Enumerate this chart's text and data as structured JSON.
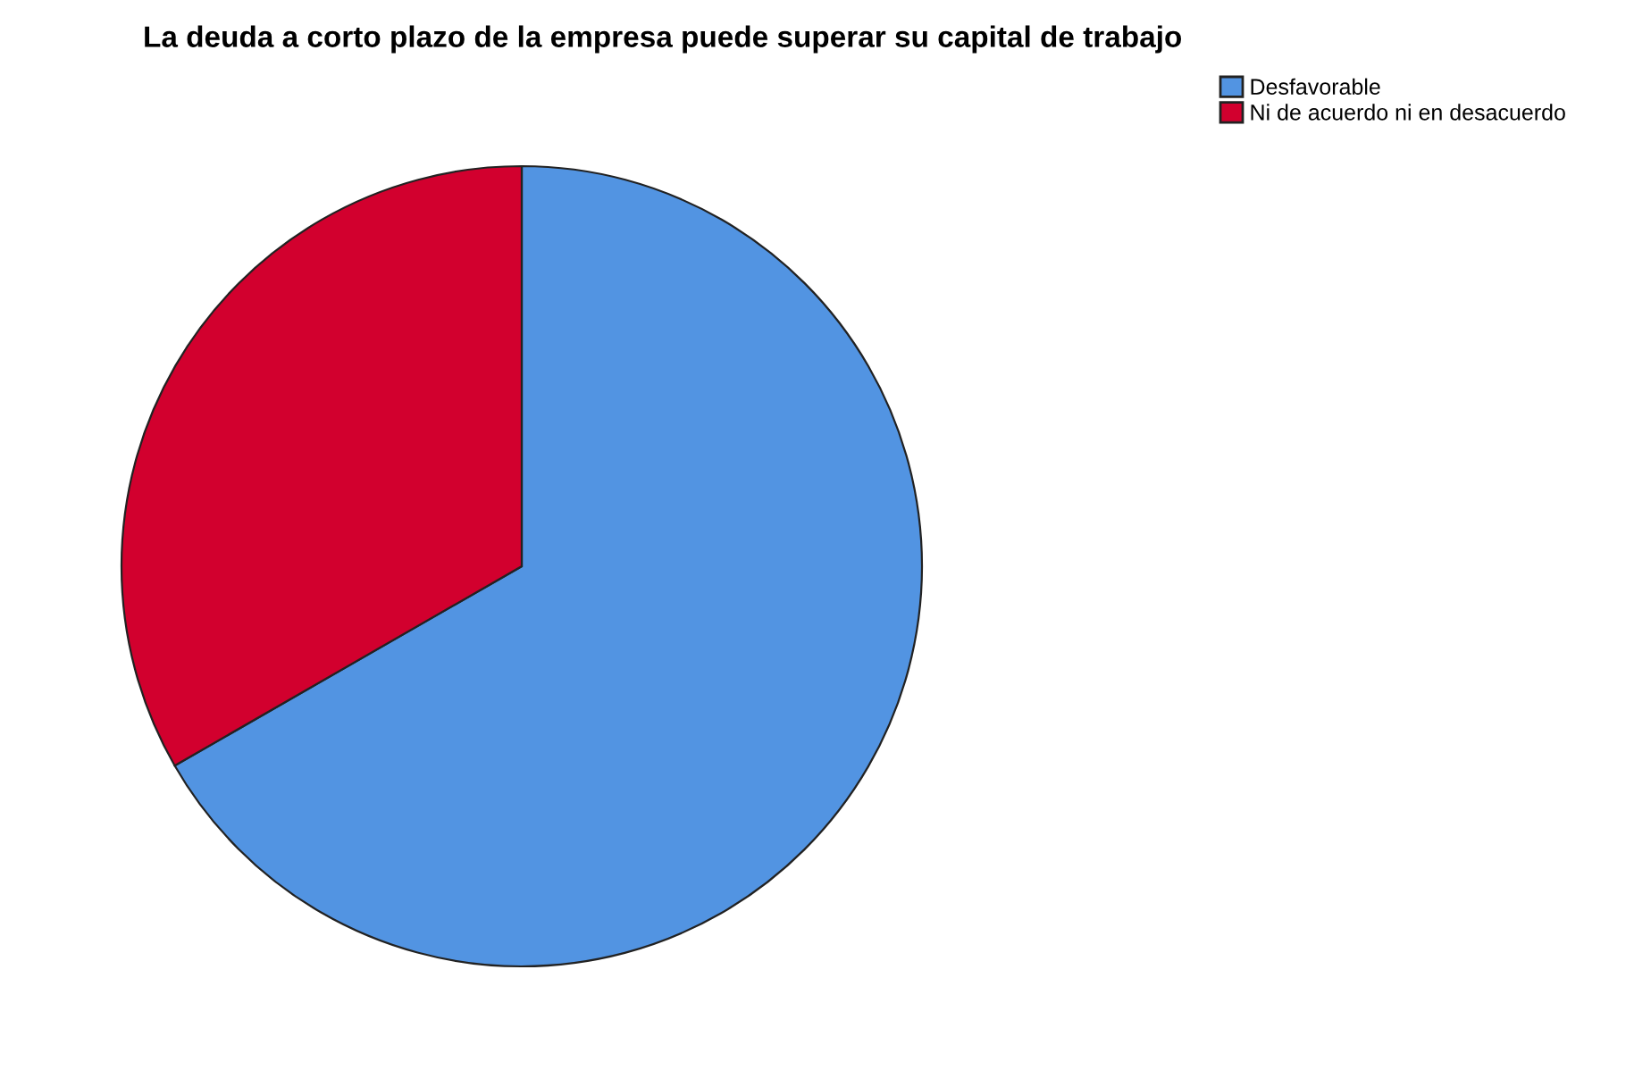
{
  "chart_data": {
    "type": "pie",
    "title": "La deuda a corto plazo de la empresa puede superar su capital de trabajo",
    "categories": [
      "Desfavorable",
      "Ni de acuerdo ni en desacuerdo"
    ],
    "values": [
      66.7,
      33.3
    ],
    "colors": [
      "#5294e2",
      "#d2002e"
    ],
    "legend": "top right"
  }
}
